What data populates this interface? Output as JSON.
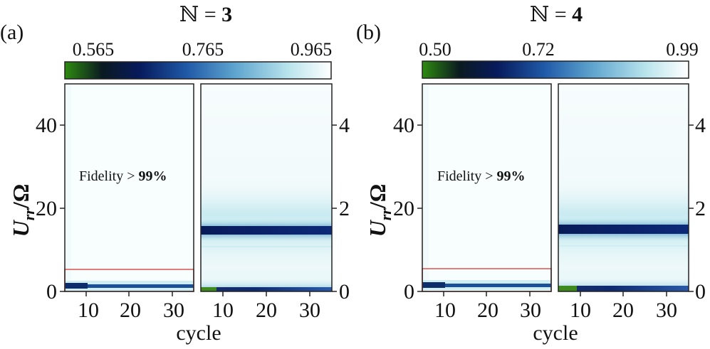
{
  "chart_data": [
    {
      "type": "heatmap",
      "panel_label": "(a)",
      "title_symbol": "ℕ",
      "title_equals": " = ",
      "title_value": "3",
      "colorbar": {
        "ticks": [
          "0.565",
          "0.765",
          "0.965"
        ],
        "range": [
          0.565,
          0.965
        ],
        "colors": [
          "#2e8b10",
          "#0a1a20",
          "#071a5c",
          "#1f5aa8",
          "#5fa5cf",
          "#b9e4ec",
          "#ffffff"
        ]
      },
      "ylabel_main": "U",
      "ylabel_sub": "rr",
      "ylabel_tail": "/Ω",
      "xlabel": "cycle",
      "x_ticks": [
        "10",
        "20",
        "30"
      ],
      "x_range": [
        5,
        35
      ],
      "left_y_ticks": [
        "0",
        "20",
        "40"
      ],
      "left_y_range": [
        0,
        50
      ],
      "right_y_ticks": [
        "0",
        "2",
        "4"
      ],
      "right_y_range": [
        0,
        5
      ],
      "annotation": {
        "text": "Fidelity > ",
        "bold": "99%"
      },
      "zoom_box_y": [
        0,
        5.5
      ],
      "left_features": [
        {
          "type": "dark_band",
          "y": 1.3,
          "min_fidelity": 0.72
        }
      ],
      "right_features": [
        {
          "type": "dark_band",
          "y": 1.5,
          "min_fidelity": 0.765
        },
        {
          "type": "faint_line",
          "y": 1.08
        },
        {
          "type": "low_region",
          "y": [
            0,
            0.06
          ]
        }
      ]
    },
    {
      "type": "heatmap",
      "panel_label": "(b)",
      "title_symbol": "ℕ",
      "title_equals": " = ",
      "title_value": "4",
      "colorbar": {
        "ticks": [
          "0.50",
          "0.72",
          "0.99"
        ],
        "range": [
          0.5,
          0.99
        ],
        "colors": [
          "#2e8b10",
          "#0a1a20",
          "#071a5c",
          "#1f5aa8",
          "#5fa5cf",
          "#b9e4ec",
          "#ffffff"
        ]
      },
      "ylabel_main": "U",
      "ylabel_sub": "rr",
      "ylabel_tail": "/Ω",
      "xlabel": "cycle",
      "x_ticks": [
        "10",
        "20",
        "30"
      ],
      "x_range": [
        5,
        35
      ],
      "left_y_ticks": [
        "0",
        "20",
        "40"
      ],
      "left_y_range": [
        0,
        50
      ],
      "right_y_ticks": [
        "0",
        "2",
        "4"
      ],
      "right_y_range": [
        0,
        5
      ],
      "annotation": {
        "text": "Fidelity > ",
        "bold": "99%"
      },
      "zoom_box_y": [
        0,
        5.5
      ],
      "left_features": [
        {
          "type": "dark_band",
          "y": 1.3,
          "min_fidelity": 0.7
        }
      ],
      "right_features": [
        {
          "type": "dark_band",
          "y": 1.5,
          "min_fidelity": 0.72
        },
        {
          "type": "faint_line",
          "y": 1.08
        },
        {
          "type": "low_region",
          "y": [
            0,
            0.06
          ]
        }
      ]
    }
  ],
  "colors": {
    "zoom_box": "#d9534f",
    "axis": "#111111",
    "frame": "#222222"
  }
}
